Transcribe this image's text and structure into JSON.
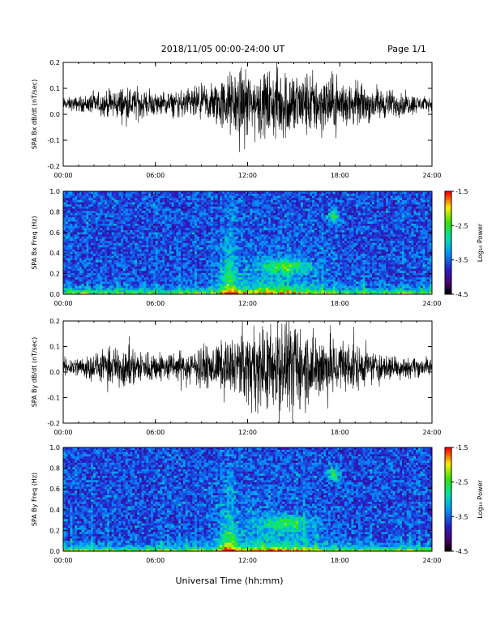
{
  "header": {
    "date_range": "2018/11/05  00:00-24:00 UT",
    "page": "Page 1/1"
  },
  "x_axis_label": "Universal Time (hh:mm)",
  "chart_data": [
    {
      "type": "line",
      "panel": "bx-dbdt",
      "ylabel": "SPA Bx dB/dt (nT/sec)",
      "xlim": [
        0,
        24
      ],
      "ylim": [
        -0.2,
        0.2
      ],
      "x_ticks": [
        "00:00",
        "06:00",
        "12:00",
        "18:00",
        "24:00"
      ],
      "y_ticks": [
        "-0.2",
        "-0.1",
        "0.0",
        "0.1",
        "0.2"
      ],
      "baseline": 0.04,
      "envelope": {
        "hours": [
          0,
          1,
          2,
          3,
          4,
          5,
          6,
          7,
          8,
          9,
          10,
          11,
          12,
          13,
          14,
          15,
          16,
          17,
          18,
          19,
          20,
          21,
          22,
          23,
          24
        ],
        "amplitude": [
          0.02,
          0.025,
          0.035,
          0.045,
          0.06,
          0.05,
          0.04,
          0.04,
          0.05,
          0.06,
          0.08,
          0.11,
          0.12,
          0.11,
          0.12,
          0.12,
          0.11,
          0.1,
          0.09,
          0.07,
          0.06,
          0.05,
          0.04,
          0.03,
          0.02
        ]
      }
    },
    {
      "type": "heatmap",
      "panel": "bx-spectrogram",
      "ylabel": "SPA Bx Freq (Hz)",
      "xlim": [
        0,
        24
      ],
      "ylim": [
        0,
        1.0
      ],
      "x_ticks": [
        "00:00",
        "06:00",
        "12:00",
        "18:00",
        "24:00"
      ],
      "y_ticks": [
        "0.0",
        "0.2",
        "0.4",
        "0.6",
        "0.8",
        "1.0"
      ],
      "colorbar": {
        "label": "Log₁₀ Power",
        "range": [
          -4.5,
          -1.5
        ],
        "ticks": [
          "-1.5",
          "-2.5",
          "-3.5",
          "-4.5"
        ]
      }
    },
    {
      "type": "line",
      "panel": "by-dbdt",
      "ylabel": "SPA By dB/dt (nT/sec)",
      "xlim": [
        0,
        24
      ],
      "ylim": [
        -0.2,
        0.2
      ],
      "x_ticks": [
        "00:00",
        "06:00",
        "12:00",
        "18:00",
        "24:00"
      ],
      "y_ticks": [
        "-0.2",
        "-0.1",
        "0.0",
        "0.1",
        "0.2"
      ],
      "baseline": 0.02,
      "envelope": {
        "hours": [
          0,
          1,
          2,
          3,
          4,
          5,
          6,
          7,
          8,
          9,
          10,
          11,
          12,
          13,
          14,
          15,
          16,
          17,
          18,
          19,
          20,
          21,
          22,
          23,
          24
        ],
        "amplitude": [
          0.03,
          0.035,
          0.045,
          0.06,
          0.07,
          0.06,
          0.05,
          0.05,
          0.05,
          0.06,
          0.08,
          0.1,
          0.12,
          0.14,
          0.16,
          0.15,
          0.13,
          0.12,
          0.1,
          0.08,
          0.06,
          0.05,
          0.04,
          0.035,
          0.03
        ]
      }
    },
    {
      "type": "heatmap",
      "panel": "by-spectrogram",
      "ylabel": "SPA By Freq (Hz)",
      "xlim": [
        0,
        24
      ],
      "ylim": [
        0,
        1.0
      ],
      "x_ticks": [
        "00:00",
        "06:00",
        "12:00",
        "18:00",
        "24:00"
      ],
      "y_ticks": [
        "0.0",
        "0.2",
        "0.4",
        "0.6",
        "0.8",
        "1.0"
      ],
      "colorbar": {
        "label": "Log₁₀ Power",
        "range": [
          -4.5,
          -1.5
        ],
        "ticks": [
          "-1.5",
          "-2.5",
          "-3.5",
          "-4.5"
        ]
      }
    }
  ]
}
